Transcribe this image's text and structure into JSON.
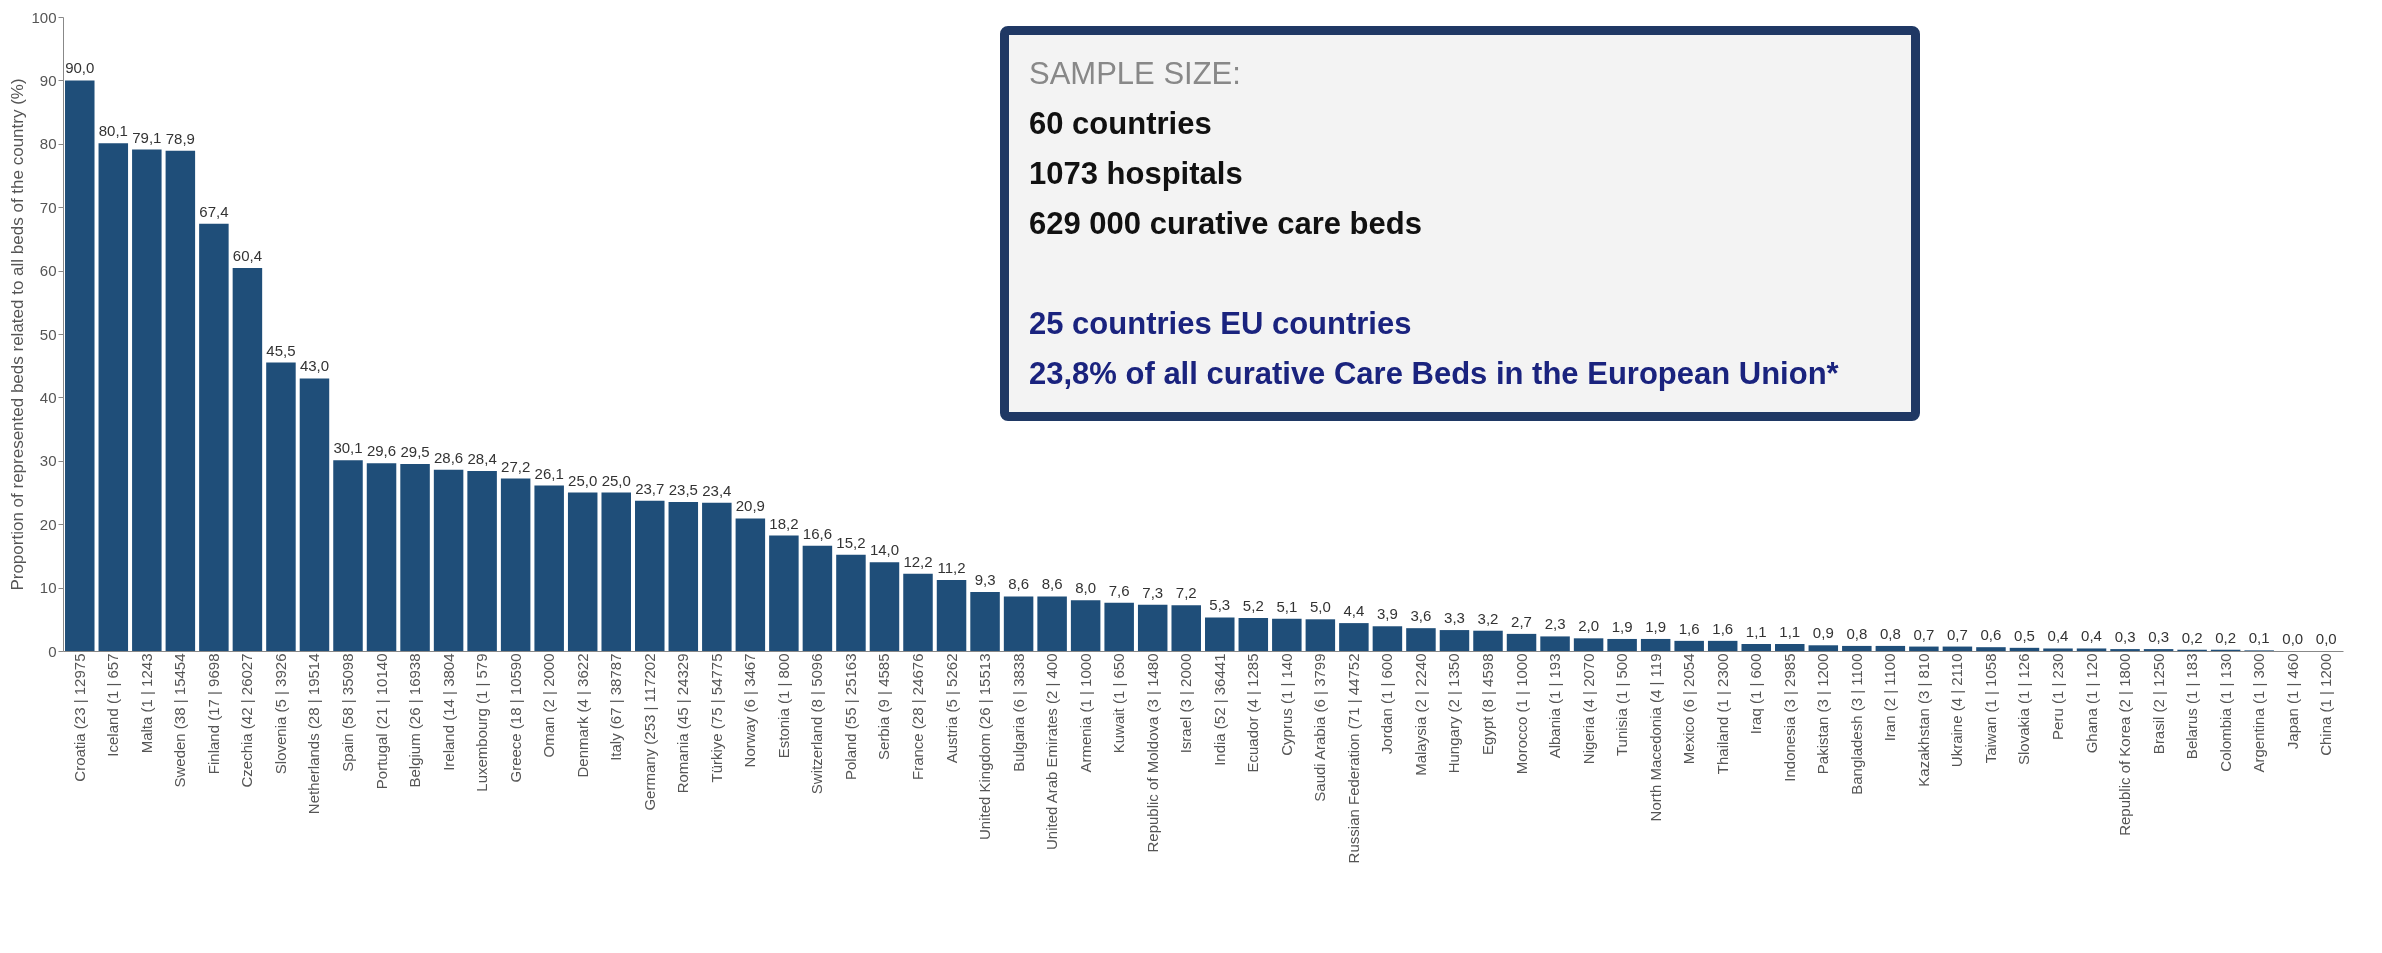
{
  "chart_data": {
    "type": "bar",
    "ylabel": "Proportion of represented beds related to all beds of the country (%)",
    "categories": [
      "Croatia (23 | 12975",
      "Iceland (1 | 657",
      "Malta (1 | 1243",
      "Sweden (38 | 15454",
      "Finland (17 | 9698",
      "Czechia (42 | 26027",
      "Slovenia (5 | 3926",
      "Netherlands (28 | 19514",
      "Spain (58 | 35098",
      "Portugal (21 | 10140",
      "Belgium (26 | 16938",
      "Ireland (14 | 3804",
      "Luxembourg (1 | 579",
      "Greece (18 | 10590",
      "Oman (2 | 2000",
      "Denmark (4 | 3622",
      "Italy (67 | 38787",
      "Germany (253 | 117202",
      "Romania (45 | 24329",
      "Türkiye (75 | 54775",
      "Norway (6 | 3467",
      "Estonia (1 | 800",
      "Switzerland (8 | 5096",
      "Poland (55 | 25163",
      "Serbia (9 | 4585",
      "France (28 | 24676",
      "Austria (5 | 5262",
      "United Kingdom (26 | 15513",
      "Bulgaria (6 | 3838",
      "United Arab Emirates (2 | 400",
      "Armenia (1 | 1000",
      "Kuwait (1 | 650",
      "Republic of Moldova (3 | 1480",
      "Israel (3 | 2000",
      "India (52 | 36441",
      "Ecuador (4 | 1285",
      "Cyprus (1 | 140",
      "Saudi Arabia (6 | 3799",
      "Russian Federation (71 | 44752",
      "Jordan (1 | 600",
      "Malaysia (2 | 2240",
      "Hungary (2 | 1350",
      "Egypt (8 | 4598",
      "Morocco (1 | 1000",
      "Albania (1 | 193",
      "Nigeria (4 | 2070",
      "Tunisia (1 | 500",
      "North Macedonia (4 | 119",
      "Mexico (6 | 2054",
      "Thailand (1 | 2300",
      "Iraq (1 | 600",
      "Indonesia (3 | 2985",
      "Pakistan (3 | 1200",
      "Bangladesh (3 | 1100",
      "Iran (2 | 1100",
      "Kazakhstan (3 | 810",
      "Ukraine (4 | 2110",
      "Taiwan (1 | 1058",
      "Slovakia (1 | 126",
      "Peru (1 | 230",
      "Ghana (1 | 120",
      "Republic of Korea (2 | 1800",
      "Brasil (2 | 1250",
      "Belarus (1 | 183",
      "Colombia (1 | 130",
      "Argentina (1 | 300",
      "Japan (1 | 460",
      "China (1 | 1200"
    ],
    "values": [
      90.0,
      80.1,
      79.1,
      78.9,
      67.4,
      60.4,
      45.5,
      43.0,
      30.1,
      29.6,
      29.5,
      28.6,
      28.4,
      27.2,
      26.1,
      25.0,
      25.0,
      23.7,
      23.5,
      23.4,
      20.9,
      18.2,
      16.6,
      15.2,
      14.0,
      12.2,
      11.2,
      9.3,
      8.6,
      8.6,
      8.0,
      7.6,
      7.3,
      7.2,
      5.3,
      5.2,
      5.1,
      5.0,
      4.4,
      3.9,
      3.6,
      3.3,
      3.2,
      2.7,
      2.3,
      2.0,
      1.9,
      1.9,
      1.6,
      1.6,
      1.1,
      1.1,
      0.9,
      0.8,
      0.8,
      0.7,
      0.7,
      0.6,
      0.5,
      0.4,
      0.4,
      0.3,
      0.3,
      0.2,
      0.2,
      0.1,
      0.0,
      0.0
    ],
    "value_labels": [
      "90,0",
      "80,1",
      "79,1",
      "78,9",
      "67,4",
      "60,4",
      "45,5",
      "43,0",
      "30,1",
      "29,6",
      "29,5",
      "28,6",
      "28,4",
      "27,2",
      "26,1",
      "25,0",
      "25,0",
      "23,7",
      "23,5",
      "23,4",
      "20,9",
      "18,2",
      "16,6",
      "15,2",
      "14,0",
      "12,2",
      "11,2",
      "9,3",
      "8,6",
      "8,6",
      "8,0",
      "7,6",
      "7,3",
      "7,2",
      "5,3",
      "5,2",
      "5,1",
      "5,0",
      "4,4",
      "3,9",
      "3,6",
      "3,3",
      "3,2",
      "2,7",
      "2,3",
      "2,0",
      "1,9",
      "1,9",
      "1,6",
      "1,6",
      "1,1",
      "1,1",
      "0,9",
      "0,8",
      "0,8",
      "0,7",
      "0,7",
      "0,6",
      "0,5",
      "0,4",
      "0,4",
      "0,3",
      "0,3",
      "0,2",
      "0,2",
      "0,1",
      "0,0",
      "0,0"
    ],
    "color": "#1f4e79",
    "ylim": [
      0,
      100
    ],
    "yticks": [
      0,
      10,
      20,
      30,
      40,
      50,
      60,
      70,
      80,
      90,
      100
    ],
    "grid": false,
    "annotations": [
      "SAMPLE SIZE:",
      "60 countries",
      "1073 hospitals",
      "629 000 curative care beds",
      "25 countries EU countries",
      "23,8% of all curative Care Beds in the European Union*"
    ]
  }
}
